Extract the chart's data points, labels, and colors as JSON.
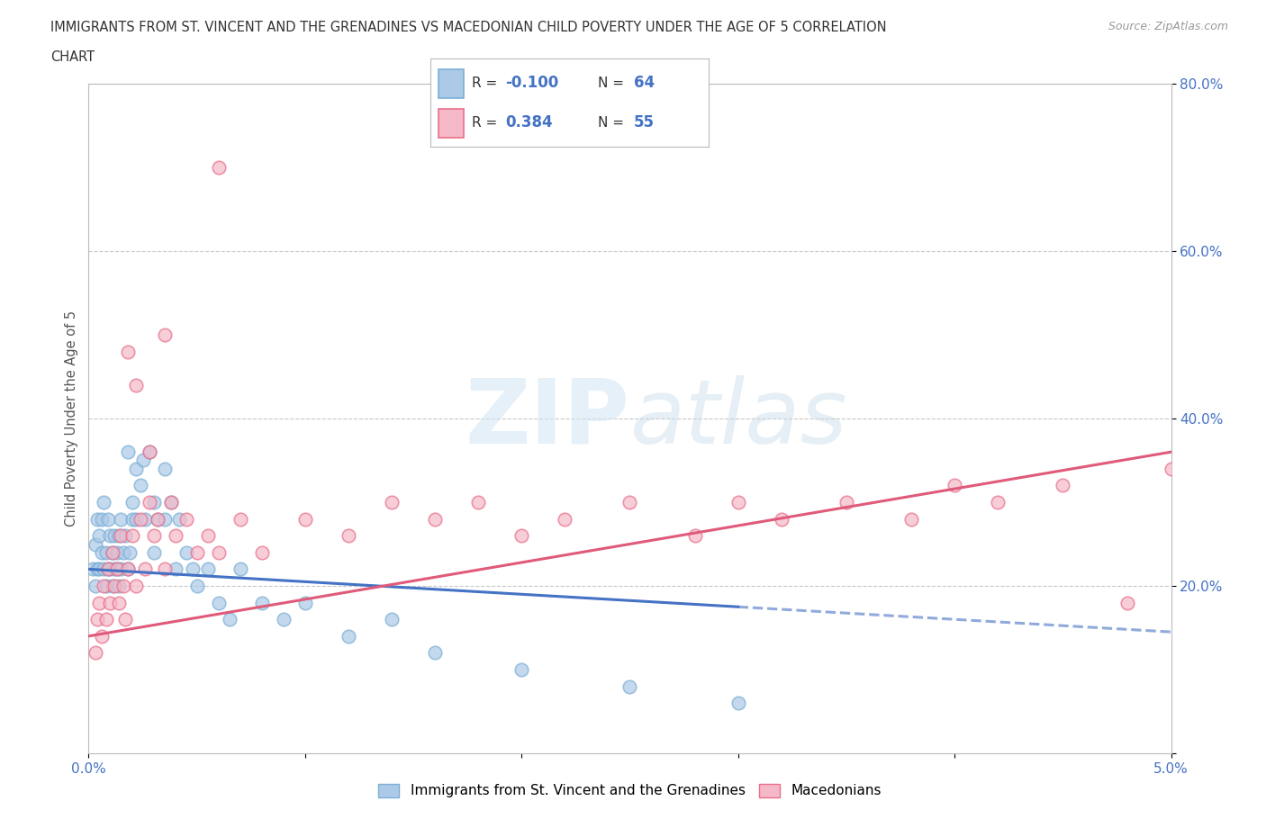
{
  "title_line1": "IMMIGRANTS FROM ST. VINCENT AND THE GRENADINES VS MACEDONIAN CHILD POVERTY UNDER THE AGE OF 5 CORRELATION",
  "title_line2": "CHART",
  "source": "Source: ZipAtlas.com",
  "ylabel": "Child Poverty Under the Age of 5",
  "xmin": 0.0,
  "xmax": 5.0,
  "ymin": 0.0,
  "ymax": 80.0,
  "blue_R": -0.1,
  "blue_N": 64,
  "pink_R": 0.384,
  "pink_N": 55,
  "blue_color": "#adc9e8",
  "pink_color": "#f5b8c8",
  "blue_edge_color": "#7bafd4",
  "pink_edge_color": "#e8708a",
  "blue_line_color": "#4472c4",
  "pink_line_color": "#e05a7a",
  "legend1_label": "Immigrants from St. Vincent and the Grenadines",
  "legend2_label": "Macedonians",
  "watermark_zip": "ZIP",
  "watermark_atlas": "atlas",
  "background_color": "#ffffff",
  "grid_color": "#c8c8c8",
  "tick_color": "#4472c4",
  "blue_scatter_x": [
    0.02,
    0.03,
    0.03,
    0.04,
    0.04,
    0.05,
    0.05,
    0.06,
    0.06,
    0.07,
    0.07,
    0.08,
    0.08,
    0.09,
    0.09,
    0.1,
    0.1,
    0.11,
    0.11,
    0.12,
    0.12,
    0.13,
    0.13,
    0.14,
    0.14,
    0.15,
    0.15,
    0.16,
    0.17,
    0.18,
    0.18,
    0.19,
    0.2,
    0.2,
    0.22,
    0.22,
    0.24,
    0.25,
    0.26,
    0.28,
    0.3,
    0.3,
    0.32,
    0.35,
    0.35,
    0.38,
    0.4,
    0.42,
    0.45,
    0.48,
    0.5,
    0.55,
    0.6,
    0.65,
    0.7,
    0.8,
    0.9,
    1.0,
    1.2,
    1.4,
    1.6,
    2.0,
    2.5,
    3.0
  ],
  "blue_scatter_y": [
    22,
    20,
    25,
    22,
    28,
    22,
    26,
    24,
    28,
    22,
    30,
    20,
    24,
    22,
    28,
    22,
    26,
    20,
    24,
    22,
    26,
    22,
    24,
    20,
    26,
    22,
    28,
    24,
    26,
    22,
    36,
    24,
    30,
    28,
    34,
    28,
    32,
    35,
    28,
    36,
    30,
    24,
    28,
    34,
    28,
    30,
    22,
    28,
    24,
    22,
    20,
    22,
    18,
    16,
    22,
    18,
    16,
    18,
    14,
    16,
    12,
    10,
    8,
    6
  ],
  "pink_scatter_x": [
    0.03,
    0.04,
    0.05,
    0.06,
    0.07,
    0.08,
    0.09,
    0.1,
    0.11,
    0.12,
    0.13,
    0.14,
    0.15,
    0.16,
    0.17,
    0.18,
    0.2,
    0.22,
    0.24,
    0.26,
    0.28,
    0.3,
    0.32,
    0.35,
    0.38,
    0.4,
    0.45,
    0.5,
    0.55,
    0.6,
    0.7,
    0.8,
    1.0,
    1.2,
    1.4,
    1.6,
    1.8,
    2.0,
    2.2,
    2.5,
    2.8,
    3.0,
    3.2,
    3.5,
    3.8,
    4.0,
    4.2,
    4.5,
    4.8,
    5.0,
    0.35,
    0.28,
    0.22,
    0.18,
    0.6
  ],
  "pink_scatter_y": [
    12,
    16,
    18,
    14,
    20,
    16,
    22,
    18,
    24,
    20,
    22,
    18,
    26,
    20,
    16,
    22,
    26,
    20,
    28,
    22,
    30,
    26,
    28,
    22,
    30,
    26,
    28,
    24,
    26,
    24,
    28,
    24,
    28,
    26,
    30,
    28,
    30,
    26,
    28,
    30,
    26,
    30,
    28,
    30,
    28,
    32,
    30,
    32,
    18,
    34,
    50,
    36,
    44,
    48,
    70
  ],
  "blue_line_x0": 0.0,
  "blue_line_x1": 3.0,
  "blue_line_y0": 22.0,
  "blue_line_y1": 17.5,
  "blue_dash_x0": 3.0,
  "blue_dash_x1": 5.0,
  "blue_dash_y0": 17.5,
  "blue_dash_y1": 14.5,
  "pink_line_x0": 0.0,
  "pink_line_x1": 5.0,
  "pink_line_y0": 14.0,
  "pink_line_y1": 36.0
}
